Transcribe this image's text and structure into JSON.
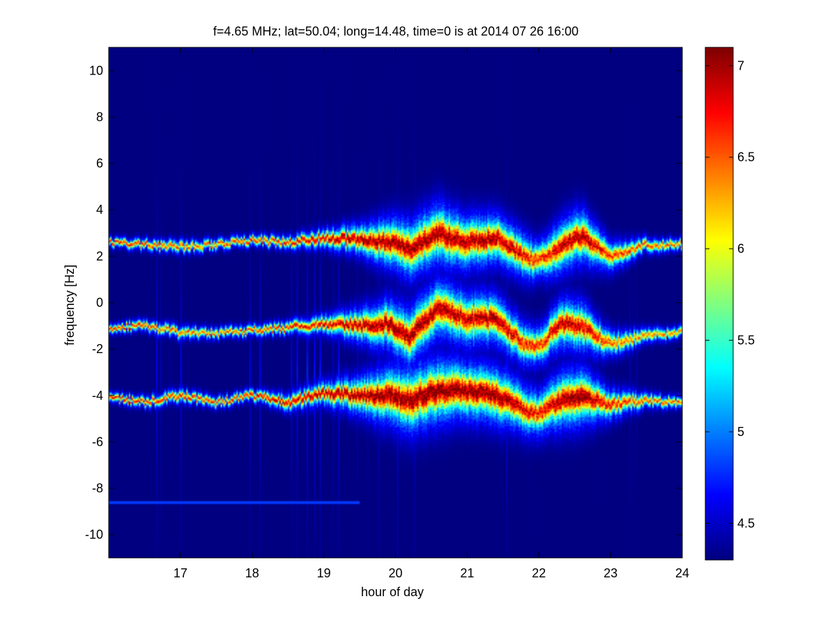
{
  "chart_data": {
    "type": "heatmap",
    "title": "f=4.65 MHz;  lat=50.04; long=14.48, time=0 is at 2014 07 26 16:00",
    "xlabel": "hour of day",
    "ylabel": "frequency [Hz]",
    "xlim": [
      16,
      24
    ],
    "ylim": [
      -11,
      11
    ],
    "xticks": [
      "17",
      "18",
      "19",
      "20",
      "21",
      "22",
      "23",
      "24"
    ],
    "xtick_values": [
      17,
      18,
      19,
      20,
      21,
      22,
      23,
      24
    ],
    "yticks": [
      "10",
      "8",
      "6",
      "4",
      "2",
      "0",
      "-2",
      "-4",
      "-6",
      "-8",
      "-10"
    ],
    "ytick_values": [
      10,
      8,
      6,
      4,
      2,
      0,
      -2,
      -4,
      -6,
      -8,
      -10
    ],
    "colorbar": {
      "colormap": "jet",
      "clim": [
        4.3,
        7.1
      ],
      "ticks": [
        "7",
        "6.5",
        "6",
        "5.5",
        "5",
        "4.5"
      ],
      "tick_values": [
        7,
        6.5,
        6,
        5.5,
        5,
        4.5
      ]
    },
    "background_value": 4.3,
    "series": [
      {
        "x": [
          16.0,
          16.5,
          17.0,
          17.5,
          18.0,
          18.5,
          19.0,
          19.5,
          19.9,
          20.2,
          20.6,
          21.0,
          21.4,
          21.8,
          22.0,
          22.3,
          22.6,
          23.0,
          23.5,
          24.0
        ],
        "y": [
          2.6,
          2.5,
          2.4,
          2.5,
          2.7,
          2.6,
          2.8,
          2.7,
          2.6,
          2.3,
          3.0,
          2.6,
          2.8,
          2.0,
          1.8,
          2.4,
          2.9,
          2.0,
          2.5,
          2.5
        ],
        "peak": [
          6.8,
          6.6,
          6.5,
          6.5,
          6.7,
          6.7,
          6.9,
          7.0,
          7.0,
          7.0,
          7.0,
          7.0,
          7.0,
          6.8,
          6.6,
          6.9,
          7.0,
          6.6,
          6.5,
          6.5
        ],
        "width": [
          0.25,
          0.3,
          0.35,
          0.3,
          0.3,
          0.35,
          0.5,
          0.8,
          1.3,
          1.5,
          1.6,
          1.4,
          1.3,
          1.2,
          1.0,
          1.4,
          1.4,
          0.8,
          0.4,
          0.3
        ]
      },
      {
        "x": [
          16.0,
          16.5,
          17.0,
          17.5,
          18.0,
          18.5,
          19.0,
          19.5,
          19.9,
          20.2,
          20.6,
          21.0,
          21.4,
          21.8,
          22.0,
          22.3,
          22.6,
          23.0,
          23.5,
          24.0
        ],
        "y": [
          -1.1,
          -1.0,
          -1.3,
          -1.3,
          -1.2,
          -1.1,
          -0.9,
          -1.0,
          -0.9,
          -1.5,
          -0.2,
          -0.7,
          -0.7,
          -1.8,
          -1.9,
          -0.9,
          -1.0,
          -1.8,
          -1.4,
          -1.3
        ],
        "peak": [
          6.7,
          6.6,
          6.5,
          6.4,
          6.6,
          6.7,
          6.8,
          6.9,
          7.0,
          7.0,
          7.0,
          6.9,
          7.0,
          6.7,
          6.6,
          6.9,
          6.9,
          6.5,
          6.4,
          6.4
        ],
        "width": [
          0.25,
          0.3,
          0.35,
          0.3,
          0.3,
          0.35,
          0.5,
          0.9,
          1.3,
          1.5,
          1.5,
          1.4,
          1.3,
          1.1,
          1.0,
          1.3,
          1.3,
          0.7,
          0.4,
          0.3
        ]
      },
      {
        "x": [
          16.0,
          16.5,
          17.0,
          17.5,
          18.0,
          18.5,
          19.0,
          19.5,
          19.9,
          20.2,
          20.6,
          21.0,
          21.4,
          21.8,
          22.0,
          22.3,
          22.6,
          23.0,
          23.5,
          24.0
        ],
        "y": [
          -4.1,
          -4.3,
          -4.0,
          -4.3,
          -4.0,
          -4.3,
          -3.9,
          -4.0,
          -4.0,
          -4.2,
          -3.8,
          -3.8,
          -4.0,
          -4.6,
          -4.8,
          -4.2,
          -4.0,
          -4.4,
          -4.2,
          -4.3
        ],
        "peak": [
          6.8,
          6.7,
          6.7,
          6.6,
          6.8,
          6.9,
          7.0,
          7.0,
          7.1,
          7.1,
          7.1,
          7.1,
          7.1,
          6.8,
          6.7,
          7.0,
          7.1,
          6.7,
          6.5,
          6.5
        ],
        "width": [
          0.25,
          0.3,
          0.35,
          0.3,
          0.3,
          0.45,
          0.6,
          1.0,
          1.5,
          1.7,
          1.7,
          1.5,
          1.5,
          1.3,
          1.2,
          1.5,
          1.5,
          0.8,
          0.4,
          0.3
        ]
      }
    ],
    "faint_line": {
      "y": -8.6,
      "x": [
        16.0,
        19.5
      ],
      "value": 4.8
    }
  }
}
